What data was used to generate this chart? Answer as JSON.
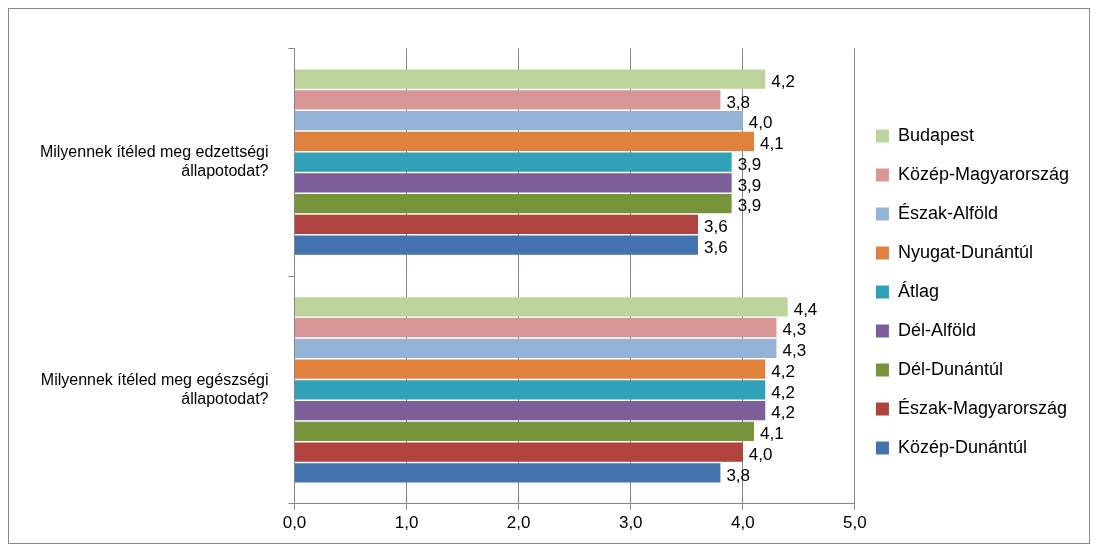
{
  "chart_data": {
    "type": "bar",
    "orientation": "horizontal",
    "categories": [
      "Milyennek ítéled meg edzettségi állapotodat?",
      "Milyennek ítéled meg egészségi állapotodat?"
    ],
    "series": [
      {
        "name": "Budapest",
        "color": "#bcd39c",
        "values": [
          4.2,
          4.4
        ],
        "value_labels": [
          "4,2",
          "4,4"
        ]
      },
      {
        "name": "Közép-Magyarország",
        "color": "#d99694",
        "values": [
          3.8,
          4.3
        ],
        "value_labels": [
          "3,8",
          "4,3"
        ]
      },
      {
        "name": "Észak-Alföld",
        "color": "#95b3d7",
        "values": [
          4.0,
          4.3
        ],
        "value_labels": [
          "4,0",
          "4,3"
        ]
      },
      {
        "name": "Nyugat-Dunántúl",
        "color": "#e0823d",
        "values": [
          4.1,
          4.2
        ],
        "value_labels": [
          "4,1",
          "4,2"
        ]
      },
      {
        "name": "Átlag",
        "color": "#31a1b8",
        "values": [
          3.9,
          4.2
        ],
        "value_labels": [
          "3,9",
          "4,2"
        ]
      },
      {
        "name": "Dél-Alföld",
        "color": "#7c5f9a",
        "values": [
          3.9,
          4.2
        ],
        "value_labels": [
          "3,9",
          "4,2"
        ]
      },
      {
        "name": "Dél-Dunántúl",
        "color": "#77933c",
        "values": [
          3.9,
          4.1
        ],
        "value_labels": [
          "3,9",
          "4,1"
        ]
      },
      {
        "name": "Észak-Magyarország",
        "color": "#b0433f",
        "values": [
          3.6,
          4.0
        ],
        "value_labels": [
          "3,6",
          "4,0"
        ]
      },
      {
        "name": "Közép-Dunántúl",
        "color": "#4472ae",
        "values": [
          3.6,
          3.8
        ],
        "value_labels": [
          "3,6",
          "3,8"
        ]
      }
    ],
    "xlim": [
      0,
      5
    ],
    "xticks": [
      {
        "value": 0,
        "label": "0,0"
      },
      {
        "value": 1,
        "label": "1,0"
      },
      {
        "value": 2,
        "label": "2,0"
      },
      {
        "value": 3,
        "label": "3,0"
      },
      {
        "value": 4,
        "label": "4,0"
      },
      {
        "value": 5,
        "label": "5,0"
      }
    ],
    "grid": "x",
    "legend": "right"
  }
}
